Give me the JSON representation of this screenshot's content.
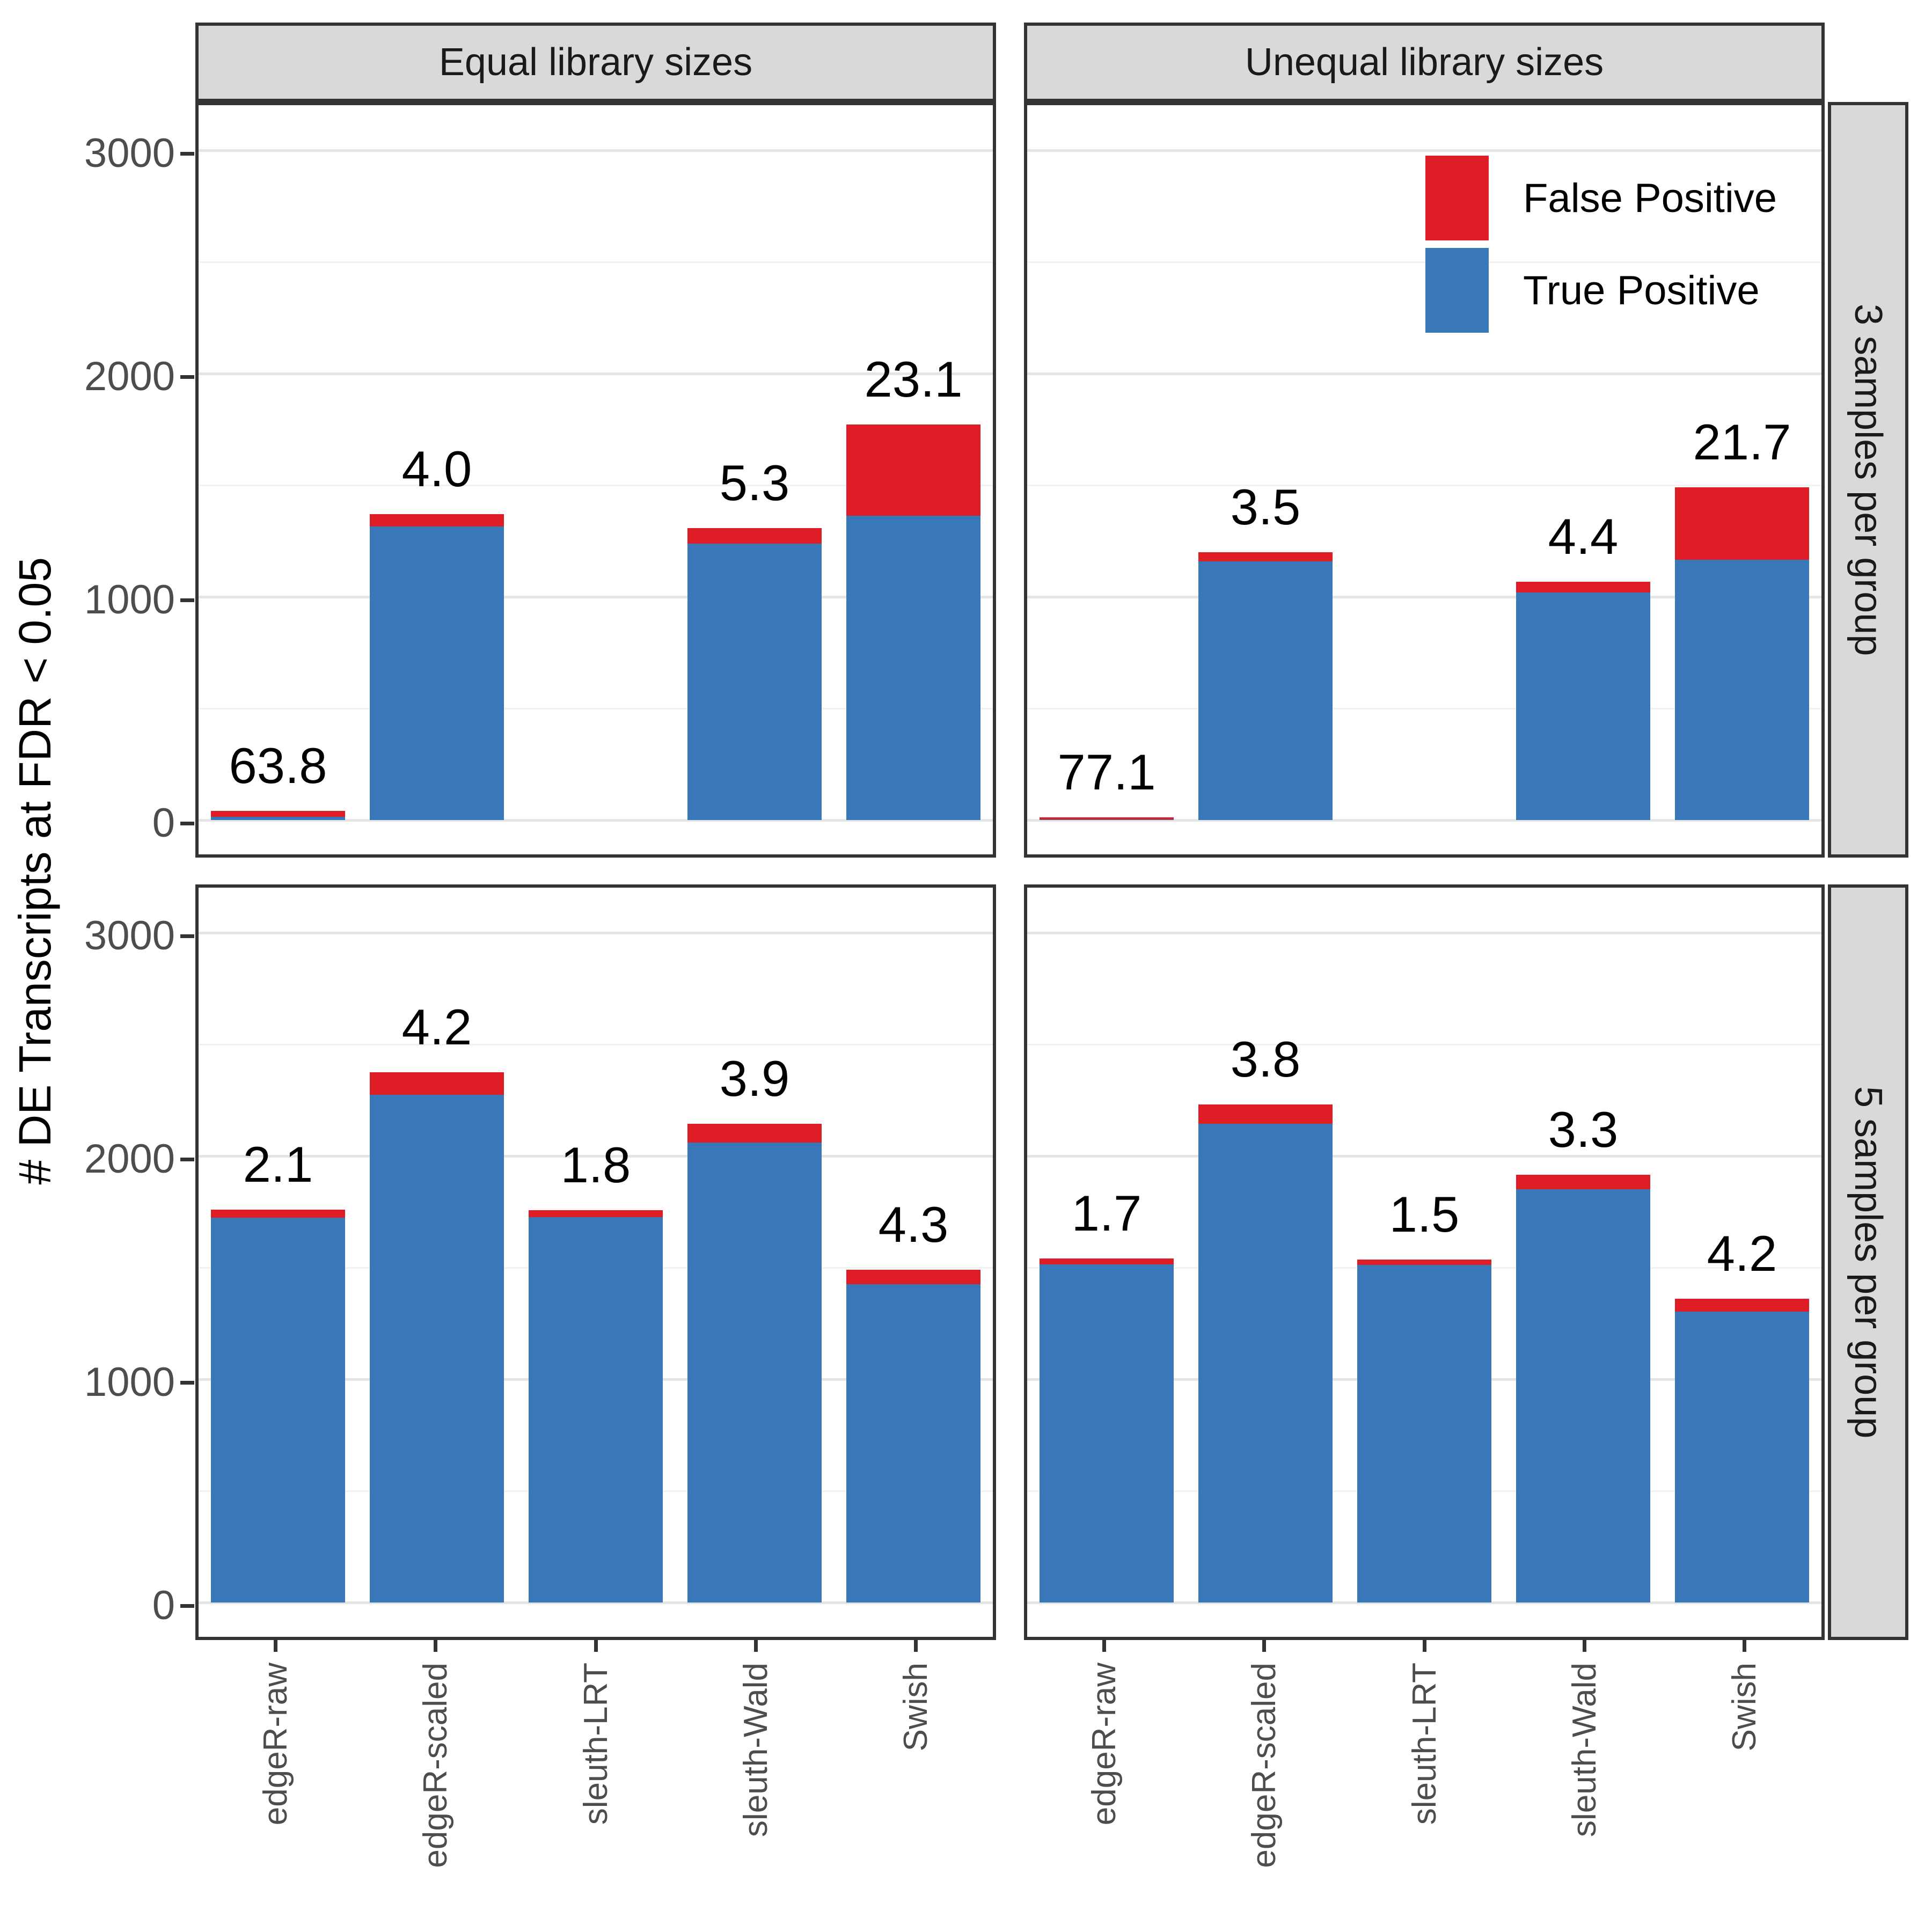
{
  "chart_data": {
    "type": "bar",
    "stacked": true,
    "title": "",
    "ylabel": "# DE Transcripts at FDR < 0.05",
    "xlabel": "",
    "y_ticks": [
      0,
      1000,
      2000,
      3000
    ],
    "ylim": [
      0,
      3230
    ],
    "grid": {
      "major": [
        0,
        1000,
        2000,
        3000
      ],
      "minor": [
        500,
        1500,
        2500
      ],
      "on": true
    },
    "categories": [
      "edgeR-raw",
      "edgeR-scaled",
      "sleuth-LRT",
      "sleuth-Wald",
      "Swish"
    ],
    "col_facets": [
      "Equal library sizes",
      "Unequal library sizes"
    ],
    "row_facets": [
      "3 samples per group",
      "5 samples per group"
    ],
    "legend": {
      "position": "inside top-right panel",
      "entries": [
        {
          "label": "False Positive",
          "color": "#df1d26"
        },
        {
          "label": "True Positive",
          "color": "#3878b8"
        }
      ]
    },
    "bar_annotation_meaning": "observed FDR percent (false positives as % of total) printed above each bar",
    "panels": [
      {
        "col_facet": "Equal library sizes",
        "row_facet": "3 samples per group",
        "bars": [
          {
            "category": "edgeR-raw",
            "true_positive": 15,
            "false_positive": 27,
            "total": 42,
            "fdr_label": "63.8"
          },
          {
            "category": "edgeR-scaled",
            "true_positive": 1315,
            "false_positive": 55,
            "total": 1370,
            "fdr_label": "4.0"
          },
          {
            "category": "sleuth-LRT",
            "true_positive": null,
            "false_positive": null,
            "total": null,
            "fdr_label": null
          },
          {
            "category": "sleuth-Wald",
            "true_positive": 1238,
            "false_positive": 69,
            "total": 1307,
            "fdr_label": "5.3"
          },
          {
            "category": "Swish",
            "true_positive": 1362,
            "false_positive": 409,
            "total": 1771,
            "fdr_label": "23.1"
          }
        ]
      },
      {
        "col_facet": "Unequal library sizes",
        "row_facet": "3 samples per group",
        "bars": [
          {
            "category": "edgeR-raw",
            "true_positive": 3,
            "false_positive": 9,
            "total": 12,
            "fdr_label": "77.1"
          },
          {
            "category": "edgeR-scaled",
            "true_positive": 1158,
            "false_positive": 42,
            "total": 1200,
            "fdr_label": "3.5"
          },
          {
            "category": "sleuth-LRT",
            "true_positive": null,
            "false_positive": null,
            "total": null,
            "fdr_label": null
          },
          {
            "category": "sleuth-Wald",
            "true_positive": 1020,
            "false_positive": 47,
            "total": 1067,
            "fdr_label": "4.4"
          },
          {
            "category": "Swish",
            "true_positive": 1167,
            "false_positive": 323,
            "total": 1490,
            "fdr_label": "21.7"
          }
        ]
      },
      {
        "col_facet": "Equal library sizes",
        "row_facet": "5 samples per group",
        "bars": [
          {
            "category": "edgeR-raw",
            "true_positive": 1723,
            "false_positive": 37,
            "total": 1760,
            "fdr_label": "2.1"
          },
          {
            "category": "edgeR-scaled",
            "true_positive": 2275,
            "false_positive": 100,
            "total": 2375,
            "fdr_label": "4.2"
          },
          {
            "category": "sleuth-LRT",
            "true_positive": 1725,
            "false_positive": 32,
            "total": 1757,
            "fdr_label": "1.8"
          },
          {
            "category": "sleuth-Wald",
            "true_positive": 2061,
            "false_positive": 84,
            "total": 2145,
            "fdr_label": "3.9"
          },
          {
            "category": "Swish",
            "true_positive": 1426,
            "false_positive": 64,
            "total": 1490,
            "fdr_label": "4.3"
          }
        ]
      },
      {
        "col_facet": "Unequal library sizes",
        "row_facet": "5 samples per group",
        "bars": [
          {
            "category": "edgeR-raw",
            "true_positive": 1514,
            "false_positive": 26,
            "total": 1540,
            "fdr_label": "1.7"
          },
          {
            "category": "edgeR-scaled",
            "true_positive": 2145,
            "false_positive": 85,
            "total": 2230,
            "fdr_label": "3.8"
          },
          {
            "category": "sleuth-LRT",
            "true_positive": 1512,
            "false_positive": 23,
            "total": 1535,
            "fdr_label": "1.5"
          },
          {
            "category": "sleuth-Wald",
            "true_positive": 1852,
            "false_positive": 63,
            "total": 1915,
            "fdr_label": "3.3"
          },
          {
            "category": "Swish",
            "true_positive": 1303,
            "false_positive": 57,
            "total": 1360,
            "fdr_label": "4.2"
          }
        ]
      }
    ]
  }
}
